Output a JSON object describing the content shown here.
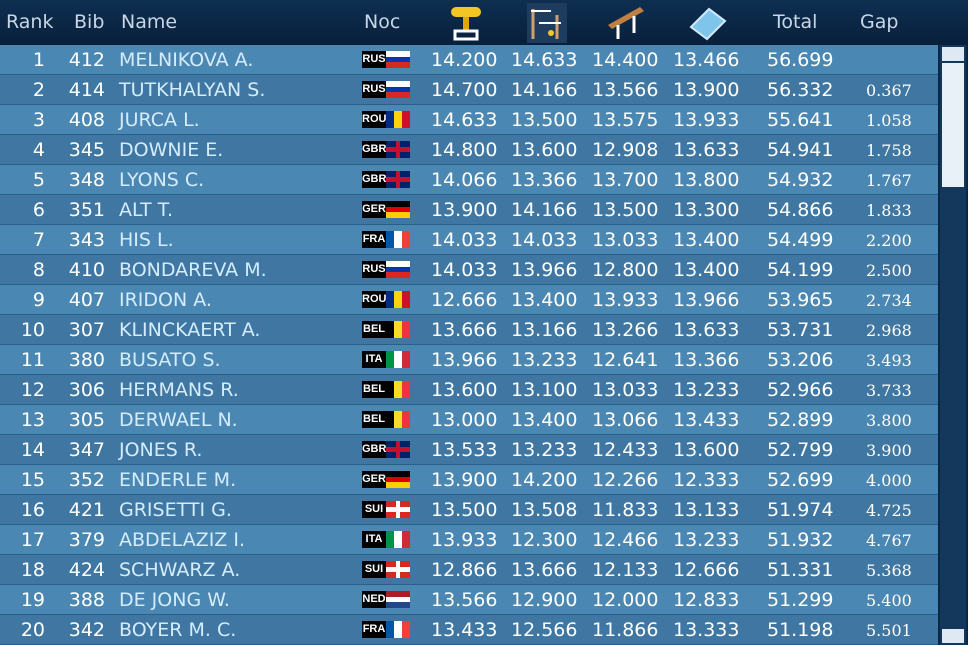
{
  "header": {
    "rank": "Rank",
    "bib": "Bib",
    "name": "Name",
    "noc": "Noc",
    "total": "Total",
    "gap": "Gap"
  },
  "table": {
    "rows": [
      {
        "rank": "1",
        "bib": "412",
        "name": "MELNIKOVA A.",
        "noc": "RUS",
        "flag": {
          "style": "h",
          "colors": [
            "#ffffff",
            "#0039a6",
            "#d52b1e"
          ]
        },
        "vault": "14.200",
        "bars": "14.633",
        "beam": "14.400",
        "floor": "13.466",
        "total": "56.699"
      },
      {
        "rank": "2",
        "bib": "414",
        "name": "TUTKHALYAN S.",
        "noc": "RUS",
        "flag": {
          "style": "h",
          "colors": [
            "#ffffff",
            "#0039a6",
            "#d52b1e"
          ]
        },
        "vault": "14.700",
        "bars": "14.166",
        "beam": "13.566",
        "floor": "13.900",
        "total": "56.332",
        "gap": "0.367"
      },
      {
        "rank": "3",
        "bib": "408",
        "name": "JURCA L.",
        "noc": "ROU",
        "flag": {
          "style": "v",
          "colors": [
            "#002b7f",
            "#fcd116",
            "#ce1126"
          ]
        },
        "vault": "14.633",
        "bars": "13.500",
        "beam": "13.575",
        "floor": "13.933",
        "total": "55.641",
        "gap": "1.058"
      },
      {
        "rank": "4",
        "bib": "345",
        "name": "DOWNIE E.",
        "noc": "GBR",
        "flag": {
          "style": "cross",
          "colors": [
            "#012169",
            "#c8102e"
          ]
        },
        "vault": "14.800",
        "bars": "13.600",
        "beam": "12.908",
        "floor": "13.633",
        "total": "54.941",
        "gap": "1.758"
      },
      {
        "rank": "5",
        "bib": "348",
        "name": "LYONS C.",
        "noc": "GBR",
        "flag": {
          "style": "cross",
          "colors": [
            "#012169",
            "#c8102e"
          ]
        },
        "vault": "14.066",
        "bars": "13.366",
        "beam": "13.700",
        "floor": "13.800",
        "total": "54.932",
        "gap": "1.767"
      },
      {
        "rank": "6",
        "bib": "351",
        "name": "ALT T.",
        "noc": "GER",
        "flag": {
          "style": "h",
          "colors": [
            "#000000",
            "#dd0000",
            "#ffce00"
          ]
        },
        "vault": "13.900",
        "bars": "14.166",
        "beam": "13.500",
        "floor": "13.300",
        "total": "54.866",
        "gap": "1.833"
      },
      {
        "rank": "7",
        "bib": "343",
        "name": "HIS L.",
        "noc": "FRA",
        "flag": {
          "style": "v",
          "colors": [
            "#0055a4",
            "#ffffff",
            "#ef4135"
          ]
        },
        "vault": "14.033",
        "bars": "14.033",
        "beam": "13.033",
        "floor": "13.400",
        "total": "54.499",
        "gap": "2.200"
      },
      {
        "rank": "8",
        "bib": "410",
        "name": "BONDAREVA M.",
        "noc": "RUS",
        "flag": {
          "style": "h",
          "colors": [
            "#ffffff",
            "#0039a6",
            "#d52b1e"
          ]
        },
        "vault": "14.033",
        "bars": "13.966",
        "beam": "12.800",
        "floor": "13.400",
        "total": "54.199",
        "gap": "2.500"
      },
      {
        "rank": "9",
        "bib": "407",
        "name": "IRIDON A.",
        "noc": "ROU",
        "flag": {
          "style": "v",
          "colors": [
            "#002b7f",
            "#fcd116",
            "#ce1126"
          ]
        },
        "vault": "12.666",
        "bars": "13.400",
        "beam": "13.933",
        "floor": "13.966",
        "total": "53.965",
        "gap": "2.734"
      },
      {
        "rank": "10",
        "bib": "307",
        "name": "KLINCKAERT A.",
        "noc": "BEL",
        "flag": {
          "style": "v",
          "colors": [
            "#000000",
            "#fdda24",
            "#ef3340"
          ]
        },
        "vault": "13.666",
        "bars": "13.166",
        "beam": "13.266",
        "floor": "13.633",
        "total": "53.731",
        "gap": "2.968"
      },
      {
        "rank": "11",
        "bib": "380",
        "name": "BUSATO S.",
        "noc": "ITA",
        "flag": {
          "style": "v",
          "colors": [
            "#009246",
            "#ffffff",
            "#ce2b37"
          ]
        },
        "vault": "13.966",
        "bars": "13.233",
        "beam": "12.641",
        "floor": "13.366",
        "total": "53.206",
        "gap": "3.493"
      },
      {
        "rank": "12",
        "bib": "306",
        "name": "HERMANS R.",
        "noc": "BEL",
        "flag": {
          "style": "v",
          "colors": [
            "#000000",
            "#fdda24",
            "#ef3340"
          ]
        },
        "vault": "13.600",
        "bars": "13.100",
        "beam": "13.033",
        "floor": "13.233",
        "total": "52.966",
        "gap": "3.733"
      },
      {
        "rank": "13",
        "bib": "305",
        "name": "DERWAEL N.",
        "noc": "BEL",
        "flag": {
          "style": "v",
          "colors": [
            "#000000",
            "#fdda24",
            "#ef3340"
          ]
        },
        "vault": "13.000",
        "bars": "13.400",
        "beam": "13.066",
        "floor": "13.433",
        "total": "52.899",
        "gap": "3.800"
      },
      {
        "rank": "14",
        "bib": "347",
        "name": "JONES R.",
        "noc": "GBR",
        "flag": {
          "style": "cross",
          "colors": [
            "#012169",
            "#c8102e"
          ]
        },
        "vault": "13.533",
        "bars": "13.233",
        "beam": "12.433",
        "floor": "13.600",
        "total": "52.799",
        "gap": "3.900"
      },
      {
        "rank": "15",
        "bib": "352",
        "name": "ENDERLE M.",
        "noc": "GER",
        "flag": {
          "style": "h",
          "colors": [
            "#000000",
            "#dd0000",
            "#ffce00"
          ]
        },
        "vault": "13.900",
        "bars": "14.200",
        "beam": "12.266",
        "floor": "12.333",
        "total": "52.699",
        "gap": "4.000"
      },
      {
        "rank": "16",
        "bib": "421",
        "name": "GRISETTI G.",
        "noc": "SUI",
        "flag": {
          "style": "cross",
          "colors": [
            "#d52b1e",
            "#ffffff"
          ]
        },
        "vault": "13.500",
        "bars": "13.508",
        "beam": "11.833",
        "floor": "13.133",
        "total": "51.974",
        "gap": "4.725"
      },
      {
        "rank": "17",
        "bib": "379",
        "name": "ABDELAZIZ I.",
        "noc": "ITA",
        "flag": {
          "style": "v",
          "colors": [
            "#009246",
            "#ffffff",
            "#ce2b37"
          ]
        },
        "vault": "13.933",
        "bars": "12.300",
        "beam": "12.466",
        "floor": "13.233",
        "total": "51.932",
        "gap": "4.767"
      },
      {
        "rank": "18",
        "bib": "424",
        "name": "SCHWARZ A.",
        "noc": "SUI",
        "flag": {
          "style": "cross",
          "colors": [
            "#d52b1e",
            "#ffffff"
          ]
        },
        "vault": "12.866",
        "bars": "13.666",
        "beam": "12.133",
        "floor": "12.666",
        "total": "51.331",
        "gap": "5.368"
      },
      {
        "rank": "19",
        "bib": "388",
        "name": "DE JONG W.",
        "noc": "NED",
        "flag": {
          "style": "h",
          "colors": [
            "#ae1c28",
            "#ffffff",
            "#21468b"
          ]
        },
        "vault": "13.566",
        "bars": "12.900",
        "beam": "12.000",
        "floor": "12.833",
        "total": "51.299",
        "gap": "5.400"
      },
      {
        "rank": "20",
        "bib": "342",
        "name": "BOYER M. C.",
        "noc": "FRA",
        "flag": {
          "style": "v",
          "colors": [
            "#0055a4",
            "#ffffff",
            "#ef4135"
          ]
        },
        "vault": "13.433",
        "bars": "12.566",
        "beam": "11.866",
        "floor": "13.333",
        "total": "51.198",
        "gap": "5.501"
      }
    ]
  }
}
